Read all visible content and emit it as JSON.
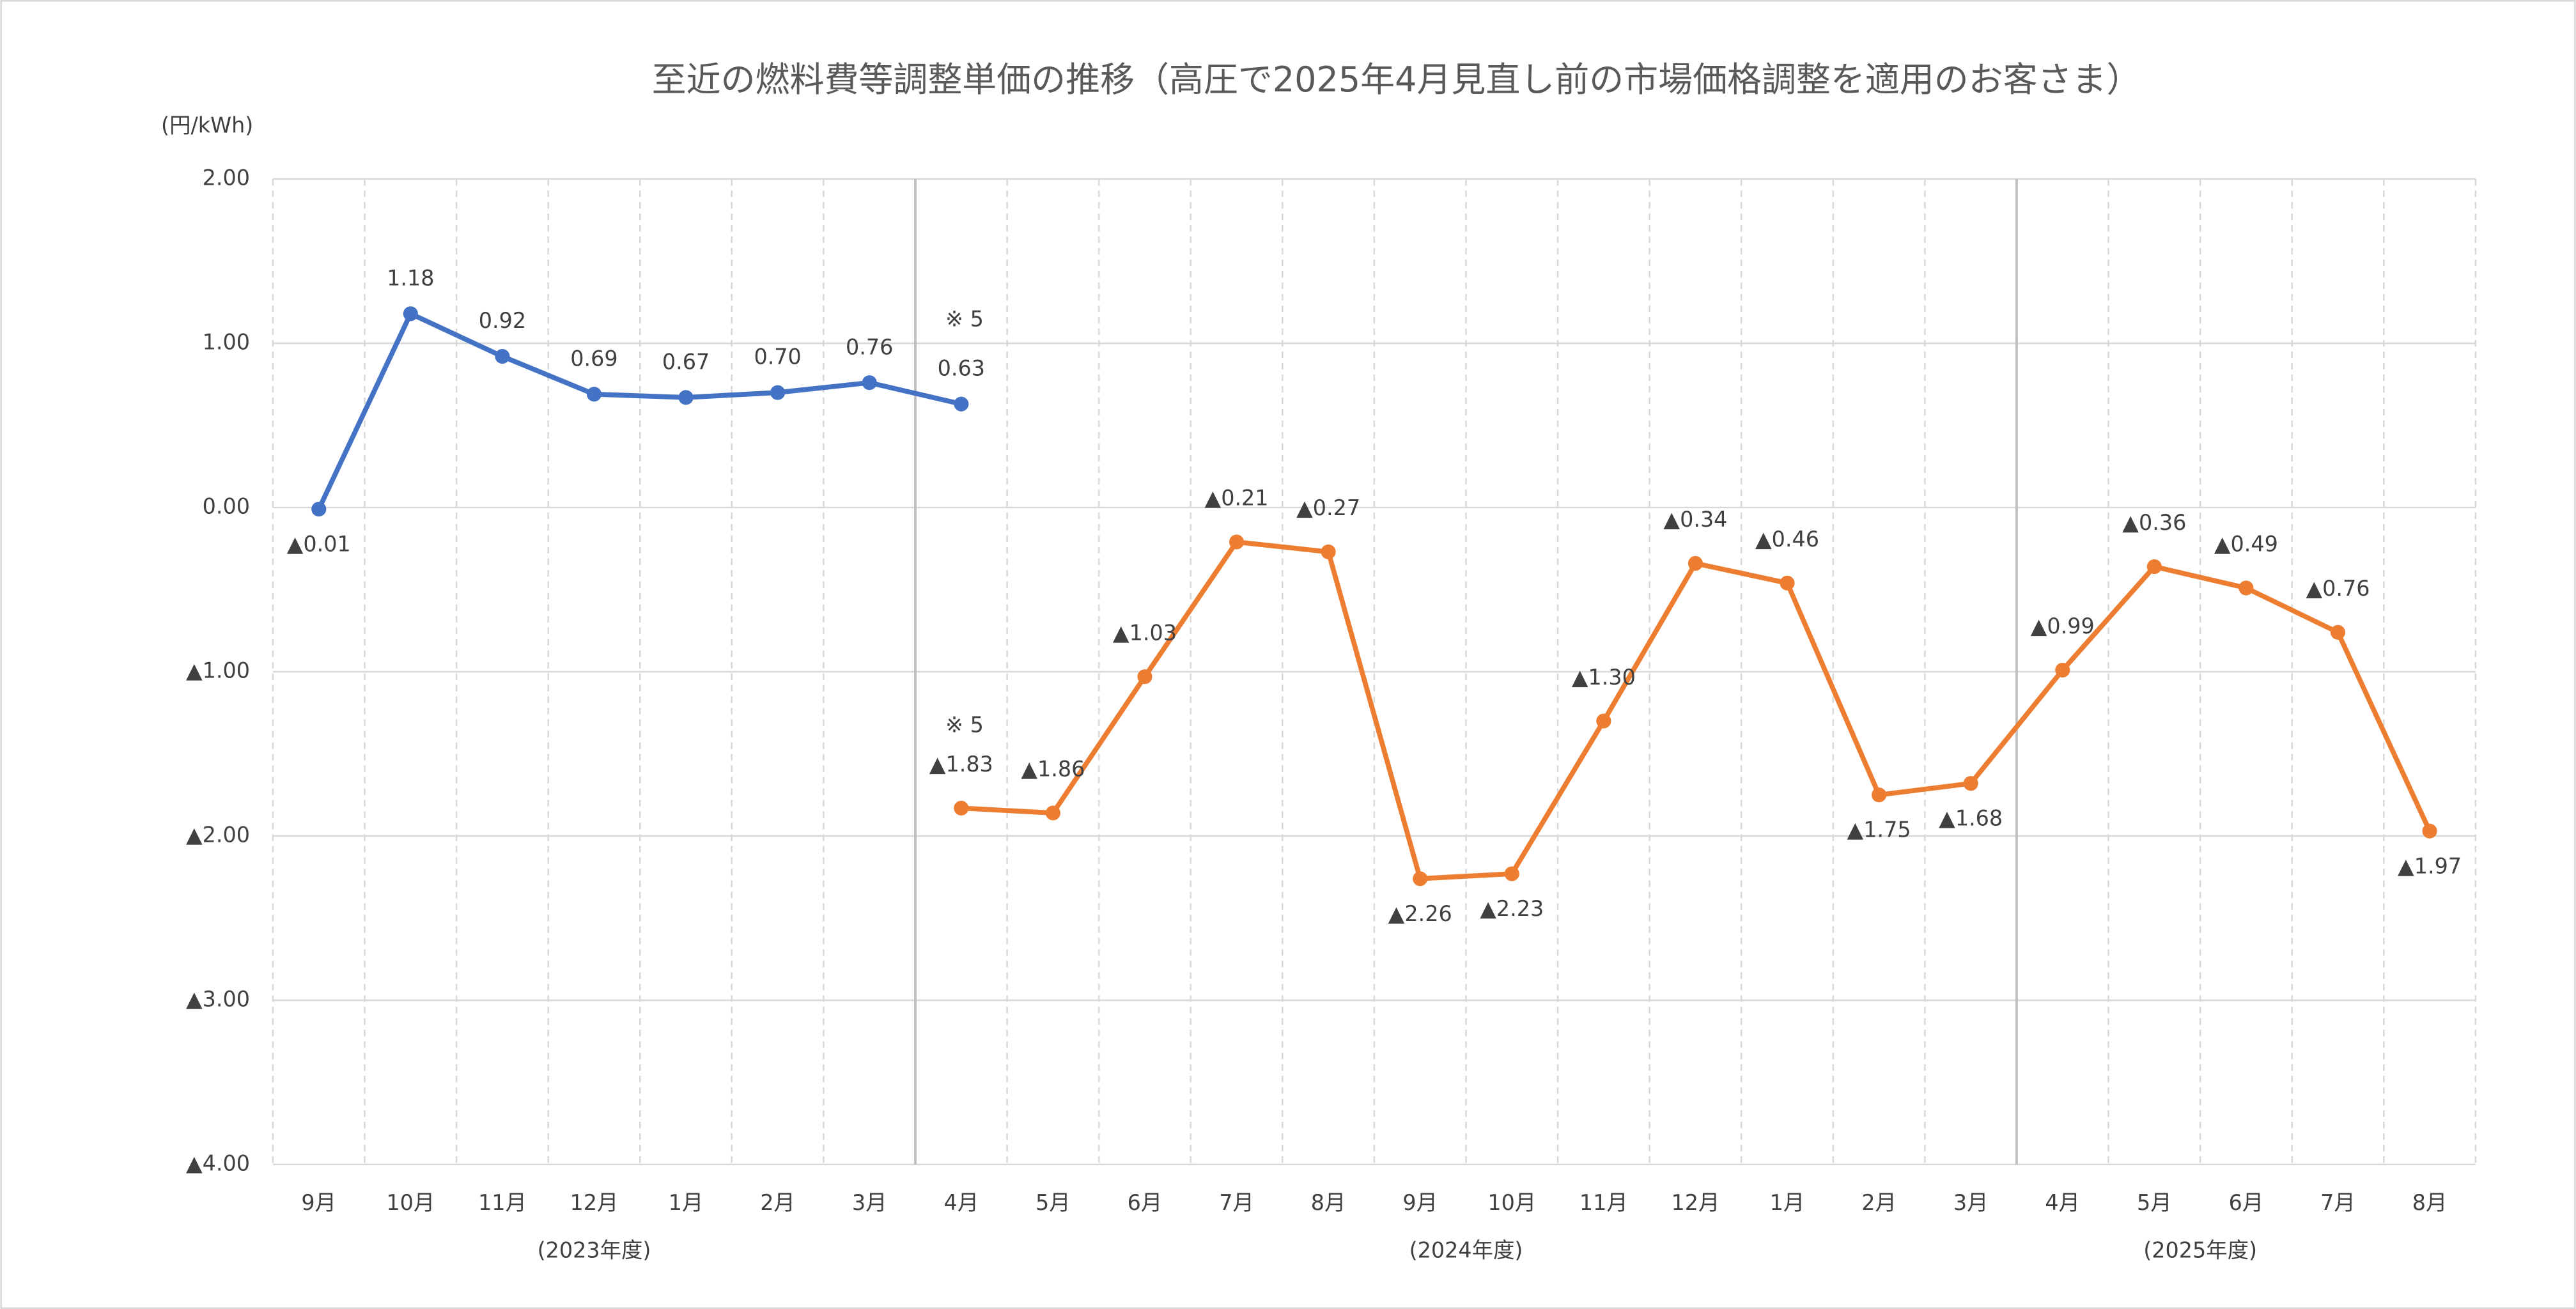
{
  "chart_data": {
    "type": "line",
    "title": "至近の燃料費等調整単価の推移（高圧で2025年4月見直し前の市場価格調整を適用のお客さま）",
    "y_axis_label": "(円/kWh)",
    "categories": [
      "9月",
      "10月",
      "11月",
      "12月",
      "1月",
      "2月",
      "3月",
      "4月",
      "5月",
      "6月",
      "7月",
      "8月",
      "9月",
      "10月",
      "11月",
      "12月",
      "1月",
      "2月",
      "3月",
      "4月",
      "5月",
      "6月",
      "7月",
      "8月"
    ],
    "period_labels": [
      "(2023年度)",
      "(2024年度)",
      "(2025年度)"
    ],
    "annotations": [
      "※ 5",
      "※ 5"
    ],
    "ylim": [
      -4,
      2
    ],
    "yticks": [
      {
        "value": 2,
        "label": "2.00"
      },
      {
        "value": 1,
        "label": "1.00"
      },
      {
        "value": 0,
        "label": "0.00"
      },
      {
        "value": -1,
        "label": "▲1.00"
      },
      {
        "value": -2,
        "label": "▲2.00"
      },
      {
        "value": -3,
        "label": "▲3.00"
      },
      {
        "value": -4,
        "label": "▲4.00"
      }
    ],
    "grid": true,
    "series": [
      {
        "color": "#4472c4",
        "values": [
          -0.01,
          1.18,
          0.92,
          0.69,
          0.67,
          0.7,
          0.76,
          0.63,
          null,
          null,
          null,
          null,
          null,
          null,
          null,
          null,
          null,
          null,
          null,
          null,
          null,
          null,
          null,
          null
        ],
        "value_labels": [
          "▲0.01",
          "1.18",
          "0.92",
          "0.69",
          "0.67",
          "0.70",
          "0.76",
          "0.63",
          null,
          null,
          null,
          null,
          null,
          null,
          null,
          null,
          null,
          null,
          null,
          null,
          null,
          null,
          null,
          null
        ]
      },
      {
        "color": "#ed7d31",
        "values": [
          null,
          null,
          null,
          null,
          null,
          null,
          null,
          -1.83,
          -1.86,
          -1.03,
          -0.21,
          -0.27,
          -2.26,
          -2.23,
          -1.3,
          -0.34,
          -0.46,
          -1.75,
          -1.68,
          -0.99,
          -0.36,
          -0.49,
          -0.76,
          -1.97
        ],
        "value_labels": [
          null,
          null,
          null,
          null,
          null,
          null,
          null,
          "▲1.83",
          "▲1.86",
          "▲1.03",
          "▲0.21",
          "▲0.27",
          "▲2.26",
          "▲2.23",
          "▲1.30",
          "▲0.34",
          "▲0.46",
          "▲1.75",
          "▲1.68",
          "▲0.99",
          "▲0.36",
          "▲0.49",
          "▲0.76",
          "▲1.97"
        ]
      }
    ]
  }
}
